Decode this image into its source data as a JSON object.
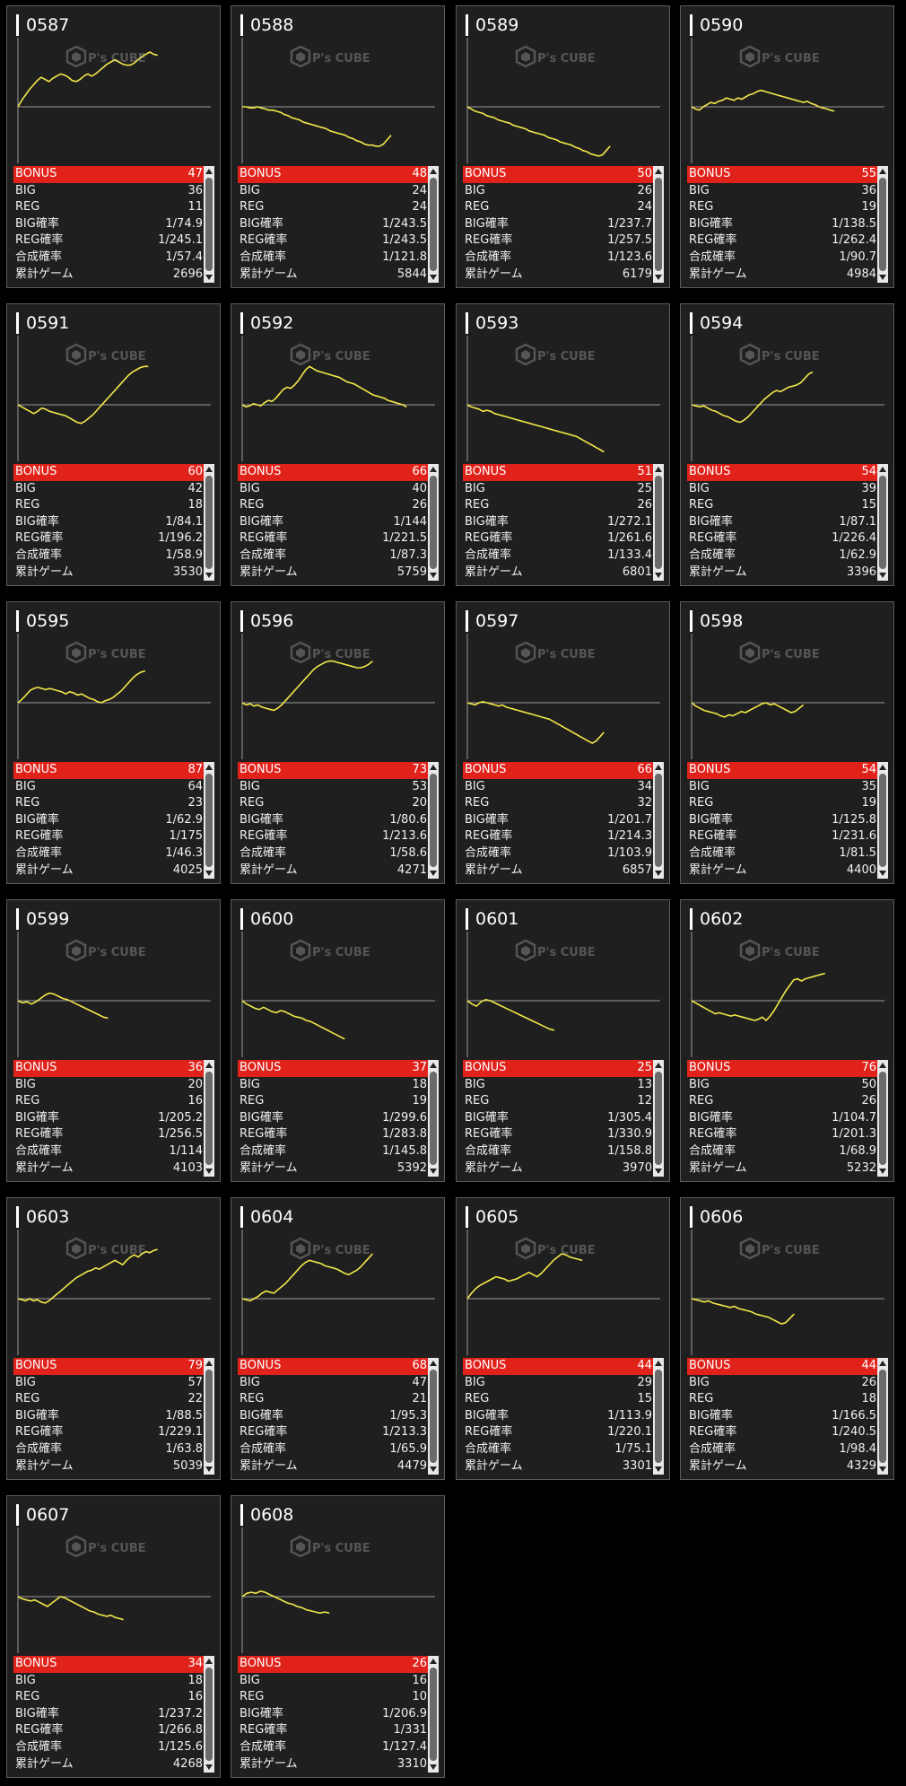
{
  "labels": {
    "bonus": "BONUS",
    "big": "BIG",
    "reg": "REG",
    "big_rate": "BIG確率",
    "reg_rate": "REG確率",
    "combined_rate": "合成確率",
    "total_games": "累計ゲーム"
  },
  "watermark": "P's CUBE",
  "colors": {
    "line": "#f2e84a",
    "bonus_bar": "#e0221b",
    "card_bg": "#1f1f1f",
    "baseline": "#9a9a9a"
  },
  "machines": [
    {
      "id": "0587",
      "bonus": "47",
      "big": "36",
      "reg": "11",
      "big_rate": "1/74.9",
      "reg_rate": "1/245.1",
      "combined_rate": "1/57.4",
      "total_games": "2696",
      "trend": [
        0,
        6,
        11,
        16,
        20,
        24,
        27,
        25,
        23,
        26,
        28,
        30,
        29,
        27,
        24,
        23,
        25,
        28,
        30,
        28,
        30,
        33,
        36,
        39,
        41,
        43,
        41,
        39,
        38,
        38,
        40,
        43,
        46,
        48,
        50,
        48,
        47
      ]
    },
    {
      "id": "0588",
      "bonus": "48",
      "big": "24",
      "reg": "24",
      "big_rate": "1/243.5",
      "reg_rate": "1/243.5",
      "combined_rate": "1/121.8",
      "total_games": "5844",
      "trend": [
        0,
        0,
        -1,
        -1,
        0,
        -1,
        -2,
        -3,
        -3,
        -4,
        -5,
        -7,
        -8,
        -10,
        -11,
        -12,
        -14,
        -15,
        -16,
        -17,
        -18,
        -19,
        -20,
        -22,
        -23,
        -24,
        -25,
        -26,
        -28,
        -29,
        -31,
        -32,
        -34,
        -35,
        -35,
        -36,
        -36,
        -34,
        -30,
        -26
      ]
    },
    {
      "id": "0589",
      "bonus": "50",
      "big": "26",
      "reg": "24",
      "big_rate": "1/237.7",
      "reg_rate": "1/257.5",
      "combined_rate": "1/123.6",
      "total_games": "6179",
      "trend": [
        0,
        -2,
        -4,
        -5,
        -6,
        -8,
        -9,
        -10,
        -12,
        -13,
        -14,
        -15,
        -17,
        -18,
        -19,
        -20,
        -22,
        -23,
        -24,
        -25,
        -26,
        -28,
        -29,
        -30,
        -32,
        -33,
        -34,
        -35,
        -37,
        -38,
        -40,
        -41,
        -43,
        -44,
        -45,
        -44,
        -40,
        -36
      ]
    },
    {
      "id": "0590",
      "bonus": "55",
      "big": "36",
      "reg": "19",
      "big_rate": "1/138.5",
      "reg_rate": "1/262.4",
      "combined_rate": "1/90.7",
      "total_games": "4984",
      "trend": [
        0,
        -2,
        -3,
        0,
        2,
        4,
        3,
        5,
        6,
        8,
        7,
        6,
        8,
        7,
        9,
        11,
        12,
        14,
        15,
        14,
        13,
        12,
        11,
        10,
        9,
        8,
        7,
        6,
        5,
        4,
        5,
        3,
        2,
        0,
        -1,
        -2,
        -3,
        -4
      ]
    },
    {
      "id": "0591",
      "bonus": "60",
      "big": "42",
      "reg": "18",
      "big_rate": "1/84.1",
      "reg_rate": "1/196.2",
      "combined_rate": "1/58.9",
      "total_games": "3530",
      "trend": [
        0,
        -2,
        -4,
        -6,
        -8,
        -6,
        -3,
        -4,
        -6,
        -7,
        -8,
        -9,
        -10,
        -12,
        -14,
        -16,
        -17,
        -15,
        -12,
        -9,
        -5,
        -1,
        3,
        7,
        11,
        15,
        19,
        23,
        27,
        30,
        32,
        34,
        35,
        35
      ]
    },
    {
      "id": "0592",
      "bonus": "66",
      "big": "40",
      "reg": "26",
      "big_rate": "1/144",
      "reg_rate": "1/221.5",
      "combined_rate": "1/87.3",
      "total_games": "5759",
      "trend": [
        0,
        -2,
        -1,
        1,
        0,
        -1,
        2,
        4,
        3,
        6,
        10,
        14,
        16,
        15,
        18,
        22,
        27,
        32,
        35,
        33,
        31,
        30,
        29,
        28,
        27,
        26,
        25,
        23,
        21,
        20,
        19,
        17,
        15,
        13,
        11,
        9,
        8,
        7,
        6,
        4,
        3,
        2,
        1,
        0,
        -2
      ]
    },
    {
      "id": "0593",
      "bonus": "51",
      "big": "25",
      "reg": "26",
      "big_rate": "1/272.1",
      "reg_rate": "1/261.6",
      "combined_rate": "1/133.4",
      "total_games": "6801",
      "trend": [
        0,
        -2,
        -3,
        -4,
        -6,
        -5,
        -6,
        -8,
        -9,
        -10,
        -11,
        -12,
        -13,
        -14,
        -15,
        -16,
        -17,
        -18,
        -19,
        -20,
        -21,
        -22,
        -23,
        -24,
        -25,
        -26,
        -27,
        -28,
        -29,
        -31,
        -33,
        -35,
        -37,
        -39,
        -41,
        -43
      ]
    },
    {
      "id": "0594",
      "bonus": "54",
      "big": "39",
      "reg": "15",
      "big_rate": "1/87.1",
      "reg_rate": "1/226.4",
      "combined_rate": "1/62.9",
      "total_games": "3396",
      "trend": [
        0,
        -1,
        -2,
        -1,
        -3,
        -5,
        -6,
        -8,
        -10,
        -11,
        -13,
        -15,
        -16,
        -14,
        -11,
        -7,
        -3,
        1,
        5,
        8,
        11,
        13,
        12,
        14,
        16,
        17,
        18,
        20,
        24,
        28,
        30
      ]
    },
    {
      "id": "0595",
      "bonus": "87",
      "big": "64",
      "reg": "23",
      "big_rate": "1/62.9",
      "reg_rate": "1/175",
      "combined_rate": "1/46.3",
      "total_games": "4025",
      "trend": [
        0,
        3,
        7,
        11,
        13,
        14,
        13,
        12,
        13,
        12,
        11,
        10,
        8,
        10,
        9,
        7,
        8,
        6,
        4,
        3,
        1,
        0,
        2,
        3,
        5,
        8,
        11,
        15,
        19,
        23,
        26,
        28,
        29
      ]
    },
    {
      "id": "0596",
      "bonus": "73",
      "big": "53",
      "reg": "20",
      "big_rate": "1/80.6",
      "reg_rate": "1/213.6",
      "combined_rate": "1/58.6",
      "total_games": "4271",
      "trend": [
        0,
        -2,
        -1,
        -3,
        -2,
        -4,
        -5,
        -6,
        -7,
        -5,
        -2,
        2,
        6,
        10,
        14,
        18,
        22,
        26,
        30,
        33,
        35,
        37,
        38,
        38,
        37,
        36,
        35,
        34,
        33,
        32,
        32,
        33,
        35,
        38
      ]
    },
    {
      "id": "0597",
      "bonus": "66",
      "big": "34",
      "reg": "32",
      "big_rate": "1/201.7",
      "reg_rate": "1/214.3",
      "combined_rate": "1/103.9",
      "total_games": "6857",
      "trend": [
        0,
        -1,
        -2,
        0,
        1,
        0,
        -1,
        -2,
        -3,
        -2,
        -4,
        -5,
        -6,
        -7,
        -8,
        -9,
        -10,
        -11,
        -12,
        -13,
        -14,
        -15,
        -17,
        -19,
        -21,
        -23,
        -25,
        -27,
        -29,
        -31,
        -33,
        -35,
        -37,
        -35,
        -31,
        -27
      ]
    },
    {
      "id": "0598",
      "bonus": "54",
      "big": "35",
      "reg": "19",
      "big_rate": "1/125.8",
      "reg_rate": "1/231.6",
      "combined_rate": "1/81.5",
      "total_games": "4400",
      "trend": [
        0,
        -3,
        -5,
        -7,
        -8,
        -9,
        -10,
        -12,
        -13,
        -11,
        -12,
        -10,
        -8,
        -9,
        -7,
        -5,
        -3,
        -1,
        0,
        -2,
        -1,
        -3,
        -5,
        -7,
        -9,
        -8,
        -5,
        -2
      ]
    },
    {
      "id": "0599",
      "bonus": "36",
      "big": "20",
      "reg": "16",
      "big_rate": "1/205.2",
      "reg_rate": "1/256.5",
      "combined_rate": "1/114",
      "total_games": "4103",
      "trend": [
        0,
        -2,
        -1,
        -3,
        -1,
        2,
        5,
        7,
        6,
        4,
        2,
        1,
        -1,
        -3,
        -5,
        -7,
        -9,
        -11,
        -13,
        -15,
        -16
      ]
    },
    {
      "id": "0600",
      "bonus": "37",
      "big": "18",
      "reg": "19",
      "big_rate": "1/299.6",
      "reg_rate": "1/283.8",
      "combined_rate": "1/145.8",
      "total_games": "5392",
      "trend": [
        0,
        -3,
        -5,
        -7,
        -8,
        -6,
        -8,
        -10,
        -11,
        -9,
        -10,
        -12,
        -14,
        -15,
        -16,
        -18,
        -19,
        -21,
        -23,
        -25,
        -27,
        -29,
        -31,
        -33,
        -35
      ]
    },
    {
      "id": "0601",
      "bonus": "25",
      "big": "13",
      "reg": "12",
      "big_rate": "1/305.4",
      "reg_rate": "1/330.9",
      "combined_rate": "1/158.8",
      "total_games": "3970",
      "trend": [
        0,
        -3,
        -5,
        -1,
        1,
        0,
        -2,
        -4,
        -6,
        -8,
        -10,
        -12,
        -14,
        -16,
        -18,
        -20,
        -22,
        -24,
        -26,
        -27
      ]
    },
    {
      "id": "0602",
      "bonus": "76",
      "big": "50",
      "reg": "26",
      "big_rate": "1/104.7",
      "reg_rate": "1/201.3",
      "combined_rate": "1/68.9",
      "total_games": "5232",
      "trend": [
        0,
        -2,
        -4,
        -6,
        -8,
        -10,
        -12,
        -11,
        -12,
        -13,
        -14,
        -13,
        -14,
        -15,
        -16,
        -17,
        -18,
        -17,
        -15,
        -18,
        -14,
        -9,
        -3,
        3,
        9,
        14,
        19,
        20,
        18,
        20,
        21,
        22,
        23,
        24,
        25
      ]
    },
    {
      "id": "0603",
      "bonus": "79",
      "big": "57",
      "reg": "22",
      "big_rate": "1/88.5",
      "reg_rate": "1/229.1",
      "combined_rate": "1/63.8",
      "total_games": "5039",
      "trend": [
        0,
        -1,
        -2,
        0,
        -2,
        -1,
        -3,
        -4,
        -2,
        1,
        4,
        7,
        10,
        13,
        16,
        19,
        21,
        23,
        25,
        26,
        28,
        27,
        29,
        31,
        33,
        35,
        33,
        31,
        35,
        38,
        40,
        38,
        41,
        43,
        42,
        44,
        45
      ]
    },
    {
      "id": "0604",
      "bonus": "68",
      "big": "47",
      "reg": "21",
      "big_rate": "1/95.3",
      "reg_rate": "1/213.3",
      "combined_rate": "1/65.9",
      "total_games": "4479",
      "trend": [
        0,
        -1,
        -2,
        0,
        2,
        5,
        7,
        6,
        5,
        8,
        11,
        14,
        18,
        22,
        26,
        30,
        33,
        35,
        34,
        33,
        32,
        30,
        29,
        28,
        27,
        25,
        23,
        22,
        24,
        26,
        29,
        33,
        37,
        41
      ]
    },
    {
      "id": "0605",
      "bonus": "44",
      "big": "29",
      "reg": "15",
      "big_rate": "1/113.9",
      "reg_rate": "1/220.1",
      "combined_rate": "1/75.1",
      "total_games": "3301",
      "trend": [
        0,
        5,
        9,
        12,
        14,
        16,
        18,
        20,
        19,
        18,
        16,
        17,
        18,
        20,
        22,
        24,
        22,
        20,
        23,
        27,
        31,
        35,
        38,
        41,
        40,
        38,
        37,
        36,
        35
      ]
    },
    {
      "id": "0606",
      "bonus": "44",
      "big": "26",
      "reg": "18",
      "big_rate": "1/166.5",
      "reg_rate": "1/240.5",
      "combined_rate": "1/98.4",
      "total_games": "4329",
      "trend": [
        0,
        -1,
        -2,
        -3,
        -2,
        -4,
        -5,
        -6,
        -7,
        -8,
        -7,
        -9,
        -10,
        -11,
        -12,
        -14,
        -15,
        -16,
        -17,
        -19,
        -21,
        -23,
        -22,
        -18,
        -14
      ]
    },
    {
      "id": "0607",
      "bonus": "34",
      "big": "18",
      "reg": "16",
      "big_rate": "1/237.2",
      "reg_rate": "1/266.8",
      "combined_rate": "1/125.6",
      "total_games": "4268",
      "trend": [
        0,
        -2,
        -3,
        -4,
        -3,
        -5,
        -7,
        -9,
        -6,
        -3,
        0,
        -1,
        -3,
        -5,
        -7,
        -9,
        -11,
        -13,
        -14,
        -16,
        -17,
        -18,
        -17,
        -19,
        -20,
        -21
      ]
    },
    {
      "id": "0608",
      "bonus": "26",
      "big": "16",
      "reg": "10",
      "big_rate": "1/206.9",
      "reg_rate": "1/331",
      "combined_rate": "1/127.4",
      "total_games": "3310",
      "trend": [
        0,
        3,
        4,
        3,
        5,
        4,
        2,
        0,
        -2,
        -4,
        -6,
        -7,
        -9,
        -10,
        -12,
        -13,
        -14,
        -15,
        -14,
        -15
      ]
    }
  ]
}
